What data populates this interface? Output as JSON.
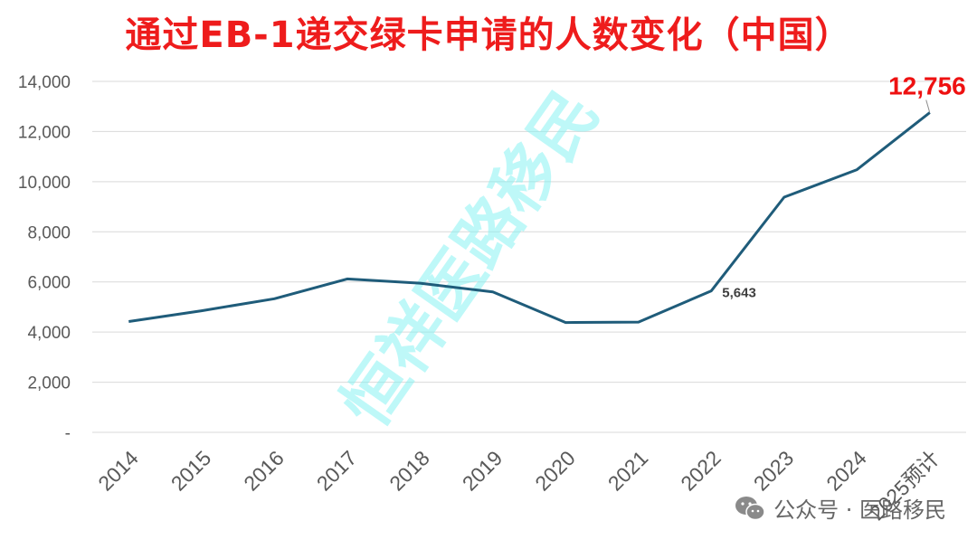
{
  "chart_data": {
    "type": "line",
    "title": "通过EB-1递交绿卡申请的人数变化（中国）",
    "categories": [
      "2014",
      "2015",
      "2016",
      "2017",
      "2018",
      "2019",
      "2020",
      "2021",
      "2022",
      "2023",
      "2024",
      "2025预计"
    ],
    "series": [
      {
        "values": [
          4420,
          4850,
          5330,
          6120,
          5950,
          5600,
          4380,
          4400,
          5643,
          9380,
          10480,
          12756
        ],
        "color": "#1f5c7a"
      }
    ],
    "yticks": [
      "-",
      "2,000",
      "4,000",
      "6,000",
      "8,000",
      "10,000",
      "12,000",
      "14,000"
    ],
    "ylim": [
      0,
      14000
    ],
    "grid": true,
    "data_labels": [
      {
        "category": "2022",
        "text": "5,643",
        "color": "#404040"
      },
      {
        "category": "2025预计",
        "text": "12,756",
        "color": "#ee1111"
      }
    ]
  },
  "watermark": "恒祥医路移民",
  "footer": {
    "text": "公众号 · 医路移民",
    "icon": "wechat-icon"
  }
}
